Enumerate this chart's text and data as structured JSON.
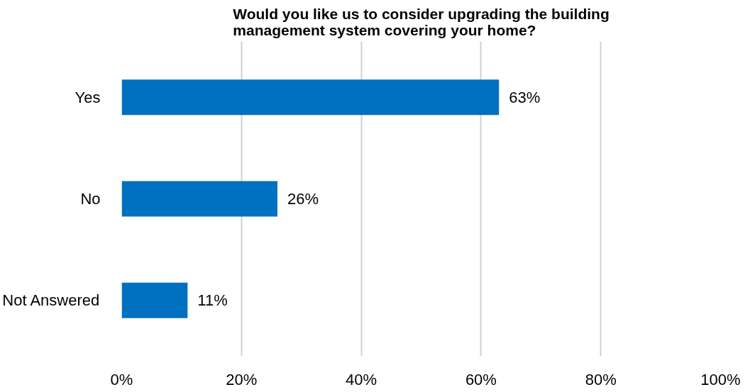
{
  "chart_data": {
    "type": "bar",
    "orientation": "horizontal",
    "title": "Would you like us to consider upgrading the building management system covering your home?",
    "categories": [
      "Yes",
      "No",
      "Not Answered"
    ],
    "values": [
      63,
      26,
      11
    ],
    "value_labels": [
      "63%",
      "26%",
      "11%"
    ],
    "color": "#0070c0",
    "xlim": [
      0,
      100
    ],
    "xticks": [
      {
        "value": 0,
        "label": "0%"
      },
      {
        "value": 20,
        "label": "20%"
      },
      {
        "value": 40,
        "label": "40%"
      },
      {
        "value": 60,
        "label": "60%"
      },
      {
        "value": 80,
        "label": "80%"
      },
      {
        "value": 100,
        "label": "100%"
      }
    ],
    "grid": "x"
  }
}
